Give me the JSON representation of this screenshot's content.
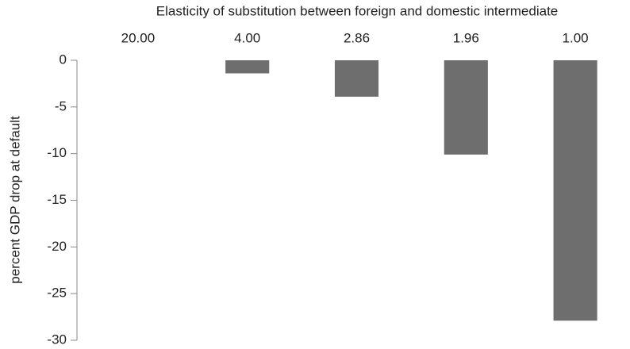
{
  "chart_data": {
    "type": "bar",
    "title": "Elasticity of substitution between foreign and domestic intermediate",
    "y_label": "percent GDP drop at default",
    "categories": [
      "20.00",
      "4.00",
      "2.86",
      "1.96",
      "1.00"
    ],
    "values": [
      0,
      -1.4,
      -3.9,
      -10.1,
      -27.9
    ],
    "color": "#6e6e6e",
    "ylim": [
      -30,
      0
    ],
    "yticks": [
      0,
      -5,
      -10,
      -15,
      -20,
      -25,
      -30
    ],
    "grid": false
  }
}
